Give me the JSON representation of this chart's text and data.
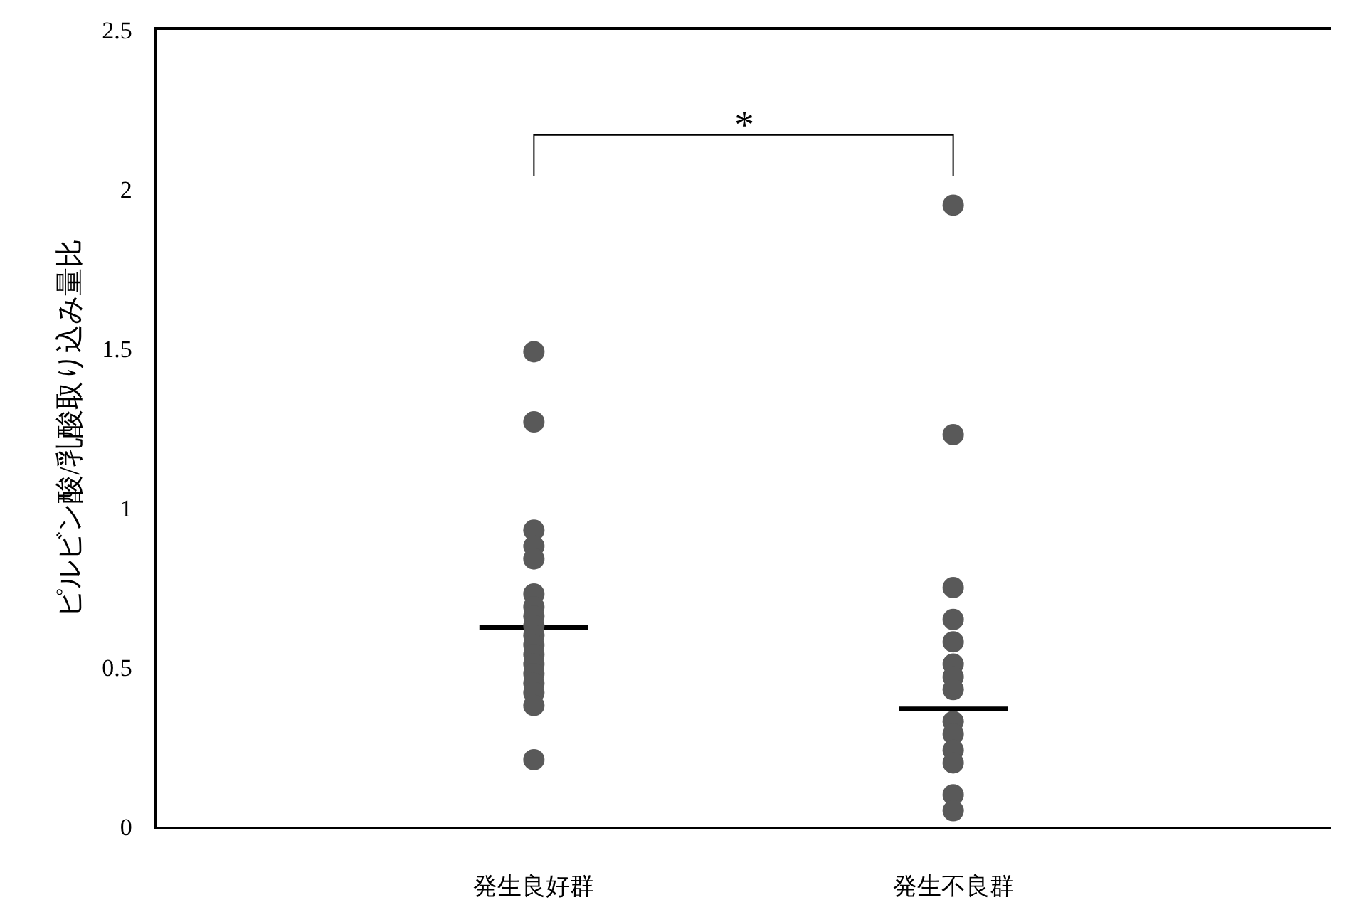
{
  "chart_data": {
    "type": "scatter",
    "ylabel": "ピルビン酸/乳酸取り込み量比",
    "categories": [
      "発生良好群",
      "発生不良群"
    ],
    "ylim": [
      0,
      2.5
    ],
    "yticks": [
      0,
      0.5,
      1,
      1.5,
      2,
      2.5
    ],
    "grid": false,
    "marker": "circle",
    "annotations": [
      "*"
    ],
    "series": [
      {
        "color": "#595959",
        "x": [
          "発生良好群",
          "発生良好群",
          "発生良好群",
          "発生良好群",
          "発生良好群",
          "発生良好群",
          "発生良好群",
          "発生良好群",
          "発生良好群",
          "発生良好群",
          "発生良好群",
          "発生良好群",
          "発生良好群",
          "発生良好群",
          "発生良好群",
          "発生良好群",
          "発生良好群",
          "発生良好群",
          "発生不良群",
          "発生不良群",
          "発生不良群",
          "発生不良群",
          "発生不良群",
          "発生不良群",
          "発生不良群",
          "発生不良群",
          "発生不良群",
          "発生不良群",
          "発生不良群",
          "発生不良群",
          "発生不良群",
          "発生不良群"
        ],
        "values": [
          1.49,
          1.27,
          0.93,
          0.88,
          0.84,
          0.73,
          0.69,
          0.66,
          0.63,
          0.6,
          0.57,
          0.54,
          0.51,
          0.48,
          0.45,
          0.42,
          0.38,
          0.21,
          1.95,
          1.23,
          0.75,
          0.65,
          0.58,
          0.51,
          0.47,
          0.43,
          0.33,
          0.29,
          0.24,
          0.2,
          0.1,
          0.05
        ]
      },
      {
        "type": "box",
        "color": "#000000",
        "boxes": [
          {
            "low": 0.625,
            "q1": 0.625,
            "median": 0.625,
            "q3": 0.625,
            "high": 0.625
          },
          {
            "low": 0.37,
            "q1": 0.37,
            "median": 0.37,
            "q3": 0.37,
            "high": 0.37
          }
        ]
      }
    ]
  }
}
